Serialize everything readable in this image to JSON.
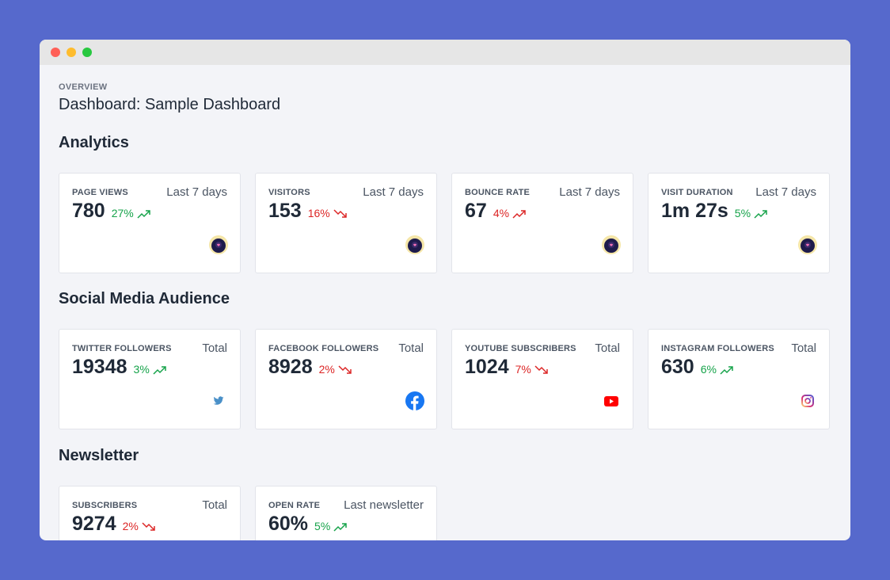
{
  "window": {
    "title": ""
  },
  "header": {
    "eyebrow": "OVERVIEW",
    "title": "Dashboard: Sample Dashboard"
  },
  "sections": {
    "analytics": {
      "title": "Analytics",
      "cards": [
        {
          "label": "PAGE VIEWS",
          "period": "Last 7 days",
          "value": "780",
          "change": "27%",
          "direction": "up",
          "icon": "avatar-icon"
        },
        {
          "label": "VISITORS",
          "period": "Last 7 days",
          "value": "153",
          "change": "16%",
          "direction": "down",
          "icon": "avatar-icon"
        },
        {
          "label": "BOUNCE RATE",
          "period": "Last 7 days",
          "value": "67",
          "change": "4%",
          "direction": "up-red",
          "icon": "avatar-icon"
        },
        {
          "label": "VISIT DURATION",
          "period": "Last 7 days",
          "value": "1m 27s",
          "change": "5%",
          "direction": "up",
          "icon": "avatar-icon"
        }
      ]
    },
    "social": {
      "title": "Social Media Audience",
      "cards": [
        {
          "label": "TWITTER FOLLOWERS",
          "period": "Total",
          "value": "19348",
          "change": "3%",
          "direction": "up",
          "icon": "twitter-icon"
        },
        {
          "label": "FACEBOOK FOLLOWERS",
          "period": "Total",
          "value": "8928",
          "change": "2%",
          "direction": "down",
          "icon": "facebook-icon"
        },
        {
          "label": "YOUTUBE SUBSCRIBERS",
          "period": "Total",
          "value": "1024",
          "change": "7%",
          "direction": "down",
          "icon": "youtube-icon"
        },
        {
          "label": "INSTAGRAM FOLLOWERS",
          "period": "Total",
          "value": "630",
          "change": "6%",
          "direction": "up",
          "icon": "instagram-icon"
        }
      ]
    },
    "newsletter": {
      "title": "Newsletter",
      "cards": [
        {
          "label": "SUBSCRIBERS",
          "period": "Total",
          "value": "9274",
          "change": "2%",
          "direction": "down",
          "icon": ""
        },
        {
          "label": "OPEN RATE",
          "period": "Last newsletter",
          "value": "60%",
          "change": "5%",
          "direction": "up",
          "icon": ""
        }
      ]
    }
  },
  "colors": {
    "background": "#5669cc",
    "up": "#16a34a",
    "down": "#dc2626",
    "window": "#f3f4f8"
  }
}
